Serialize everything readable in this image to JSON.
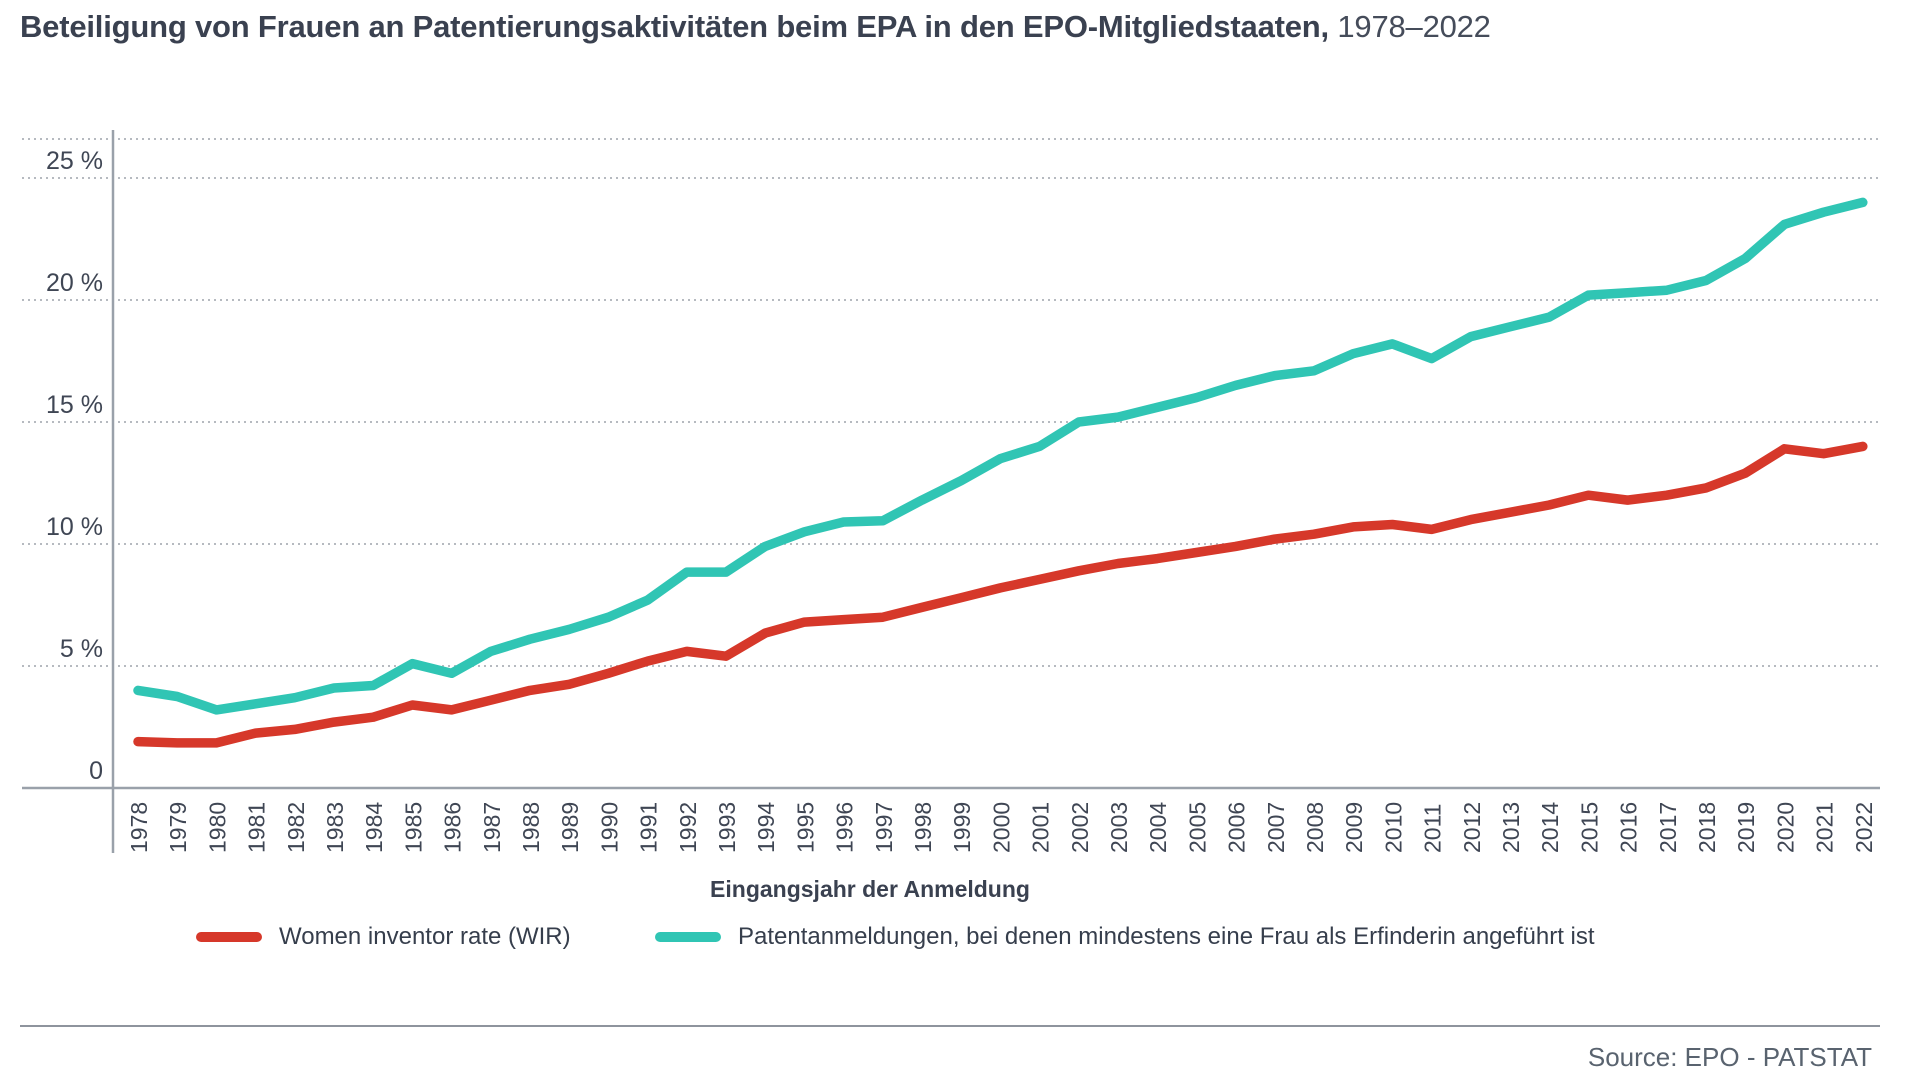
{
  "title": {
    "main": "Beteiligung von Frauen an Patentierungsaktivitäten beim EPA in den EPO-Mitgliedstaaten,",
    "period": "1978–2022"
  },
  "chart_data": {
    "type": "line",
    "title": "Beteiligung von Frauen an Patentierungsaktivitäten beim EPA in den EPO-Mitgliedstaaten, 1978–2022",
    "xlabel": "Eingangsjahr der Anmeldung",
    "ylabel": "",
    "ylim": [
      0,
      26.6
    ],
    "yticks": [
      0,
      5,
      10,
      15,
      20,
      25
    ],
    "ytick_suffix": " %",
    "grid": "horizontal-dotted",
    "legend_position": "bottom",
    "categories": [
      1978,
      1979,
      1980,
      1981,
      1982,
      1983,
      1984,
      1985,
      1986,
      1987,
      1988,
      1989,
      1990,
      1991,
      1992,
      1993,
      1994,
      1995,
      1996,
      1997,
      1998,
      1999,
      2000,
      2001,
      2002,
      2003,
      2004,
      2005,
      2006,
      2007,
      2008,
      2009,
      2010,
      2011,
      2012,
      2013,
      2014,
      2015,
      2016,
      2017,
      2018,
      2019,
      2020,
      2021,
      2022
    ],
    "series": [
      {
        "name": "Women inventor rate (WIR)",
        "color": "#D6382A",
        "values": [
          1.9,
          1.85,
          1.85,
          2.25,
          2.4,
          2.7,
          2.9,
          3.4,
          3.2,
          3.6,
          4.0,
          4.25,
          4.7,
          5.2,
          5.6,
          5.4,
          6.35,
          6.8,
          6.9,
          7.0,
          7.4,
          7.8,
          8.2,
          8.55,
          8.9,
          9.2,
          9.4,
          9.65,
          9.9,
          10.2,
          10.4,
          10.7,
          10.8,
          10.6,
          11.0,
          11.3,
          11.6,
          12.0,
          11.8,
          12.0,
          12.3,
          12.9,
          13.9,
          13.7,
          14.0
        ]
      },
      {
        "name": "Patentanmeldungen, bei denen mindestens eine Frau als Erfinderin angeführt ist",
        "color": "#30C5B4",
        "values": [
          4.0,
          3.75,
          3.2,
          3.45,
          3.7,
          4.1,
          4.2,
          5.1,
          4.7,
          5.6,
          6.1,
          6.5,
          7.0,
          7.7,
          8.85,
          8.85,
          9.9,
          10.5,
          10.9,
          10.95,
          11.8,
          12.6,
          13.5,
          14.0,
          15.0,
          15.2,
          15.6,
          16.0,
          16.5,
          16.9,
          17.1,
          17.8,
          18.2,
          17.6,
          18.5,
          18.9,
          19.3,
          20.2,
          20.3,
          20.4,
          20.8,
          21.7,
          23.1,
          23.6,
          24.0
        ]
      }
    ]
  },
  "footer": {
    "source": "Source: EPO - PATSTAT"
  }
}
